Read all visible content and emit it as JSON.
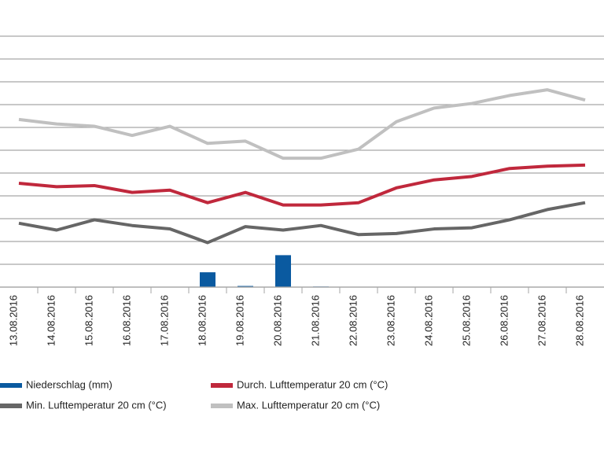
{
  "chart_data": {
    "type": "line",
    "categories": [
      "13.08.2016",
      "14.08.2016",
      "15.08.2016",
      "16.08.2016",
      "17.08.2016",
      "18.08.2016",
      "19.08.2016",
      "20.08.2016",
      "21.08.2016",
      "22.08.2016",
      "23.08.2016",
      "24.08.2016",
      "25.08.2016",
      "26.08.2016",
      "27.08.2016",
      "28.08.2016"
    ],
    "series": [
      {
        "name": "Niederschlag (mm)",
        "type": "bar",
        "color": "#0a5aa0",
        "values": [
          0,
          0,
          0,
          0,
          0,
          1.3,
          0.1,
          2.8,
          0.05,
          0,
          0,
          0,
          0,
          0,
          0,
          0
        ]
      },
      {
        "name": "Durch. Lufttemperatur 20 cm (°C)",
        "type": "line",
        "color": "#c0283c",
        "values": [
          9.1,
          8.8,
          8.9,
          8.3,
          8.5,
          7.4,
          8.3,
          7.2,
          7.2,
          7.4,
          8.7,
          9.4,
          9.7,
          10.4,
          10.6,
          10.7
        ]
      },
      {
        "name": "Min. Lufttemperatur 20 cm (°C)",
        "type": "line",
        "color": "#666666",
        "values": [
          5.6,
          5.0,
          5.9,
          5.4,
          5.1,
          3.9,
          5.3,
          5.0,
          5.4,
          4.6,
          4.7,
          5.1,
          5.2,
          5.9,
          6.8,
          7.4
        ]
      },
      {
        "name": "Max. Lufttemperatur 20 cm (°C)",
        "type": "line",
        "color": "#c0c0c0",
        "values": [
          14.7,
          14.3,
          14.1,
          13.3,
          14.1,
          12.6,
          12.8,
          11.3,
          11.3,
          12.1,
          14.5,
          15.7,
          16.1,
          16.8,
          17.3,
          16.4
        ]
      }
    ],
    "ylim": [
      0,
      22
    ],
    "yticks": [
      0,
      2,
      4,
      6,
      8,
      10,
      12,
      14,
      16,
      18,
      20,
      22
    ],
    "grid": true
  }
}
